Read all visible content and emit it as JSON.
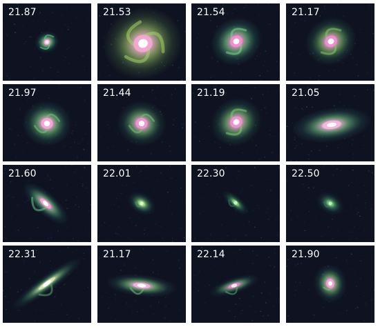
{
  "background_color": "#ffffff",
  "panel_background": "#0f1221",
  "panels": [
    {
      "label": "21.87",
      "shape": "compact-spiral",
      "core_color": "#fff6ff",
      "inner_color": "#f6a8d8",
      "arm_color": "#6fd38b",
      "halo_color": "#1f6b63"
    },
    {
      "label": "21.53",
      "shape": "large-spiral",
      "core_color": "#ffffff",
      "inner_color": "#f3a8d3",
      "arm_color": "#a4cf6b",
      "halo_color": "#4f7d45"
    },
    {
      "label": "21.54",
      "shape": "barred-spiral",
      "core_color": "#fff7ff",
      "inner_color": "#f38fcf",
      "arm_color": "#7cd48e",
      "halo_color": "#2d7666"
    },
    {
      "label": "21.17",
      "shape": "barred-spiral",
      "core_color": "#fff8ff",
      "inner_color": "#ee8fd0",
      "arm_color": "#84c86c",
      "halo_color": "#2f6f56"
    },
    {
      "label": "21.97",
      "shape": "spiral",
      "core_color": "#ffffff",
      "inner_color": "#f7a6d9",
      "arm_color": "#70c97c",
      "halo_color": "#2d6d5f"
    },
    {
      "label": "21.44",
      "shape": "spiral",
      "core_color": "#fff8ff",
      "inner_color": "#ef96d1",
      "arm_color": "#78c37a",
      "halo_color": "#2a6554"
    },
    {
      "label": "21.19",
      "shape": "barred-spiral",
      "core_color": "#fff8ff",
      "inner_color": "#ef92cf",
      "arm_color": "#7fca7a",
      "halo_color": "#2a6d56"
    },
    {
      "label": "21.05",
      "shape": "edge-elliptical",
      "core_color": "#ffffff",
      "inner_color": "#f5b7de",
      "arm_color": "#79c789",
      "halo_color": "#2d6a67"
    },
    {
      "label": "21.60",
      "shape": "tilted-spiral",
      "core_color": "#ffffff",
      "inner_color": "#f4a4d7",
      "arm_color": "#6dc083",
      "halo_color": "#25645d"
    },
    {
      "label": "22.01",
      "shape": "faint-small",
      "core_color": "#dcffd6",
      "inner_color": "#9ed67f",
      "arm_color": "#4c9a69",
      "halo_color": "#1d4f4d"
    },
    {
      "label": "22.30",
      "shape": "faint-streak",
      "core_color": "#c7f3c0",
      "inner_color": "#7cc173",
      "arm_color": "#3b8363",
      "halo_color": "#1b4646"
    },
    {
      "label": "22.50",
      "shape": "faint-small",
      "core_color": "#bdf2c1",
      "inner_color": "#6dbb77",
      "arm_color": "#3b7f61",
      "halo_color": "#1a4345"
    },
    {
      "label": "22.31",
      "shape": "edge-disk",
      "core_color": "#ffffff",
      "inner_color": "#d6e7b4",
      "arm_color": "#5da66f",
      "halo_color": "#1f5353"
    },
    {
      "label": "21.17",
      "shape": "edge-bright",
      "core_color": "#ffffff",
      "inner_color": "#f2b2de",
      "arm_color": "#78c67c",
      "halo_color": "#265f5b"
    },
    {
      "label": "22.14",
      "shape": "faint-disk",
      "core_color": "#ffe6f5",
      "inner_color": "#d58fc3",
      "arm_color": "#63ad75",
      "halo_color": "#1d4e4d"
    },
    {
      "label": "21.90",
      "shape": "compact-core",
      "core_color": "#ffffff",
      "inner_color": "#f4a4d7",
      "arm_color": "#78c47a",
      "halo_color": "#255f5b"
    }
  ]
}
